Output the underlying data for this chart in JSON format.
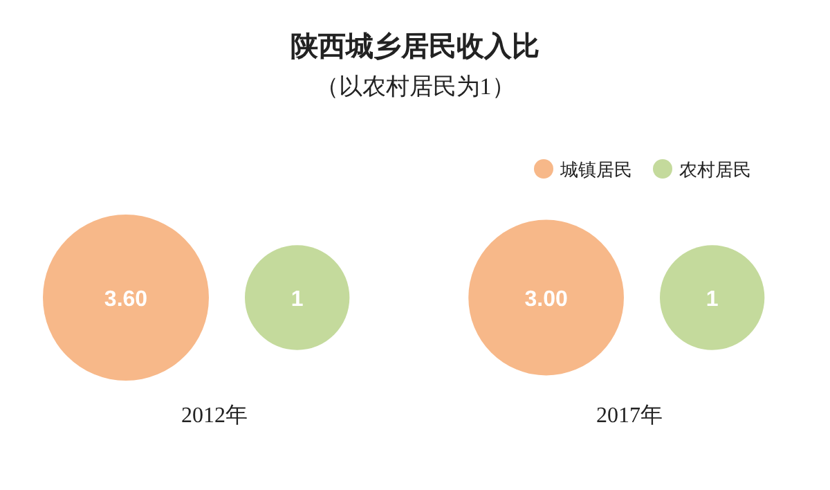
{
  "chart_data": {
    "type": "other",
    "title": "陕西城乡居民收入比",
    "subtitle": "（以农村居民为1）",
    "categories": [
      "2012年",
      "2017年"
    ],
    "series": [
      {
        "name": "城镇居民",
        "color": "#f7b889",
        "values": [
          3.6,
          3.0
        ],
        "value_labels": [
          "3.60",
          "3.00"
        ]
      },
      {
        "name": "农村居民",
        "color": "#c4da9c",
        "values": [
          1,
          1
        ],
        "value_labels": [
          "1",
          "1"
        ]
      }
    ],
    "legend": "top right"
  }
}
